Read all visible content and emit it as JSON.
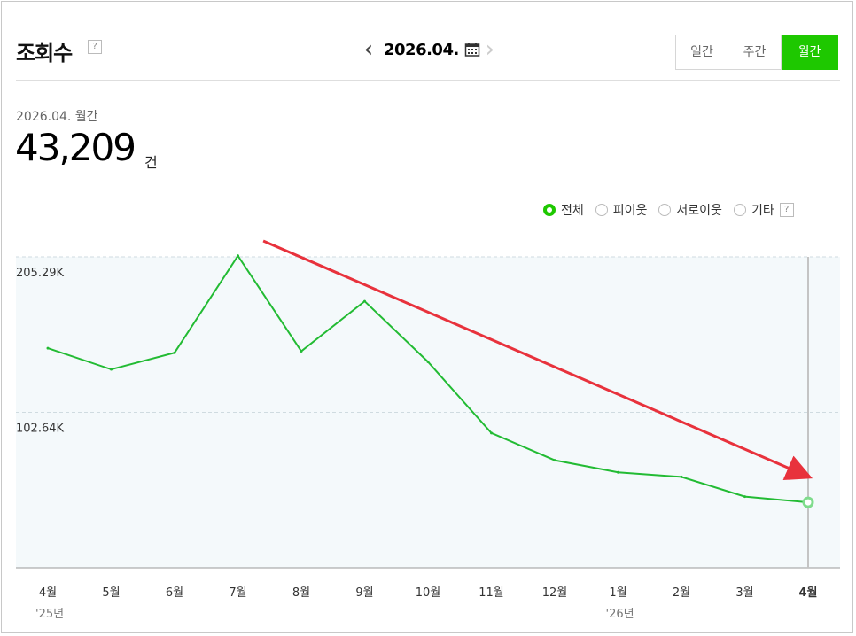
{
  "header": {
    "title": "조회수",
    "help_mark": "?",
    "date": "2026.04."
  },
  "tabs": [
    {
      "label": "일간",
      "active": false
    },
    {
      "label": "주간",
      "active": false
    },
    {
      "label": "월간",
      "active": true
    }
  ],
  "summary": {
    "period": "2026.04. 월간",
    "total": "43,209",
    "unit": "건"
  },
  "legend": [
    {
      "label": "전체",
      "selected": true
    },
    {
      "label": "피이웃",
      "selected": false
    },
    {
      "label": "서로이웃",
      "selected": false
    },
    {
      "label": "기타",
      "selected": false
    }
  ],
  "colors": {
    "accent": "#1ec800",
    "line": "#22bb33",
    "arrow": "#e8323c",
    "plot_bg": "#f4f9fb"
  },
  "chart_data": {
    "type": "line",
    "categories": [
      "4월",
      "5월",
      "6월",
      "7월",
      "8월",
      "9월",
      "10월",
      "11월",
      "12월",
      "1월",
      "2월",
      "3월",
      "4월"
    ],
    "year_labels": [
      {
        "index": 0,
        "label": "'25년"
      },
      {
        "index": 9,
        "label": "'26년"
      }
    ],
    "series": [
      {
        "values": [
          145000,
          131000,
          142000,
          206000,
          143000,
          176000,
          136000,
          89000,
          71000,
          63000,
          60000,
          47000,
          43209
        ]
      }
    ],
    "ytick_labels": [
      "205.29K",
      "102.64K"
    ],
    "yticks": [
      205290,
      102640
    ],
    "ylim": [
      0,
      205290
    ],
    "grid": true,
    "highlight_index": 12,
    "trend_arrow": {
      "from_index": 3.4,
      "from_value": 210000,
      "to_index": 12,
      "to_value": 60000
    }
  }
}
